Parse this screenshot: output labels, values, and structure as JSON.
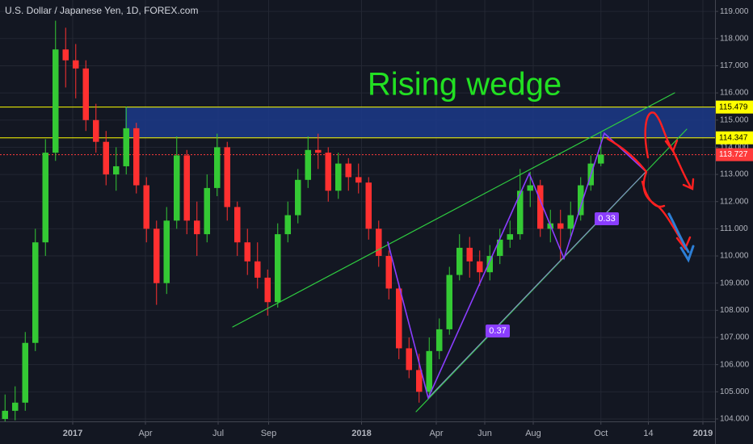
{
  "chart_data": {
    "type": "candlestick",
    "header": "U.S. Dollar / Japanese Yen, 1D, FOREX.com",
    "title": "Rising wedge",
    "annotations": [
      "0.37",
      "0.33"
    ],
    "up_color": "#34c934",
    "down_color": "#ff3030",
    "grid": true,
    "xlim": [
      -0.5,
      70.3
    ],
    "ylim": [
      103.91,
      119.42
    ],
    "xticks": [
      {
        "value": 6.7,
        "label": "2017"
      },
      {
        "value": 13.9,
        "label": "Apr"
      },
      {
        "value": 21.1,
        "label": "Jul"
      },
      {
        "value": 26.1,
        "label": "Sep"
      },
      {
        "value": 35.3,
        "label": "2018"
      },
      {
        "value": 42.7,
        "label": "Apr"
      },
      {
        "value": 47.5,
        "label": "Jun"
      },
      {
        "value": 52.3,
        "label": "Aug"
      },
      {
        "value": 59,
        "label": "Oct"
      },
      {
        "value": 63.7,
        "label": "14"
      },
      {
        "value": 69.1,
        "label": "2019"
      }
    ],
    "yticks": [
      {
        "value": 104,
        "label": "104.000"
      },
      {
        "value": 105,
        "label": "105.000"
      },
      {
        "value": 106,
        "label": "106.000"
      },
      {
        "value": 107,
        "label": "107.000"
      },
      {
        "value": 108,
        "label": "108.000"
      },
      {
        "value": 109,
        "label": "109.000"
      },
      {
        "value": 110,
        "label": "110.000"
      },
      {
        "value": 111,
        "label": "111.000"
      },
      {
        "value": 112,
        "label": "112.000"
      },
      {
        "value": 113,
        "label": "113.000"
      },
      {
        "value": 114,
        "label": "114.000"
      },
      {
        "value": 115,
        "label": "115.000"
      },
      {
        "value": 116,
        "label": "116.000"
      },
      {
        "value": 117,
        "label": "117.000"
      },
      {
        "value": 118,
        "label": "118.000"
      },
      {
        "value": 119,
        "label": "119.000"
      }
    ],
    "hlines": [
      {
        "value": 115.479,
        "color": "#ffff00"
      },
      {
        "value": 114.347,
        "color": "#ffff00"
      },
      {
        "value": 113.727,
        "color": "#ff3b3b"
      }
    ],
    "open": [
      104.0,
      104.3,
      104.6,
      106.8,
      110.5,
      113.8,
      117.6,
      117.2,
      116.9,
      115.0,
      114.2,
      113.0,
      113.3,
      114.7,
      112.6,
      111.0,
      109.0,
      111.3,
      113.7,
      111.3,
      110.8,
      112.5,
      114.0,
      111.8,
      110.5,
      109.8,
      109.2,
      108.3,
      110.8,
      111.5,
      112.8,
      113.9,
      113.8,
      112.4,
      113.4,
      112.9,
      112.7,
      111.0,
      110.0,
      108.8,
      106.6,
      105.8,
      105.0,
      106.5,
      107.3,
      109.3,
      110.3,
      109.8,
      109.4,
      110.0,
      110.6,
      110.8,
      112.4,
      112.6,
      111.0,
      111.2,
      111.0,
      111.5,
      112.6,
      113.4
    ],
    "high": [
      104.9,
      105.2,
      107.2,
      111.0,
      114.3,
      118.66,
      118.4,
      117.8,
      117.2,
      115.6,
      114.6,
      114.0,
      115.5,
      114.9,
      112.9,
      111.3,
      111.8,
      114.4,
      113.9,
      112.0,
      113.0,
      114.5,
      114.2,
      112.0,
      111.0,
      110.5,
      109.5,
      111.2,
      112.0,
      113.2,
      114.4,
      114.5,
      114.0,
      113.8,
      113.6,
      113.4,
      112.9,
      111.3,
      110.2,
      109.0,
      107.0,
      106.4,
      107.0,
      107.7,
      109.6,
      110.8,
      110.7,
      110.2,
      110.4,
      111.0,
      111.3,
      113.2,
      113.1,
      112.8,
      111.7,
      111.7,
      112.0,
      112.9,
      113.7,
      114.55
    ],
    "low": [
      103.9,
      103.95,
      104.3,
      106.5,
      110.0,
      113.5,
      116.2,
      115.8,
      114.6,
      113.8,
      112.6,
      112.4,
      113.0,
      112.3,
      110.5,
      108.2,
      108.6,
      111.0,
      110.8,
      110.0,
      110.5,
      112.2,
      111.3,
      110.0,
      109.3,
      108.8,
      107.8,
      108.1,
      110.5,
      111.2,
      112.5,
      113.2,
      112.0,
      112.1,
      112.4,
      112.3,
      110.6,
      109.6,
      108.4,
      106.2,
      105.5,
      104.6,
      104.9,
      106.2,
      107.1,
      109.1,
      109.2,
      108.9,
      109.1,
      109.7,
      110.3,
      110.6,
      111.8,
      110.7,
      110.5,
      109.8,
      110.7,
      111.3,
      112.4,
      113.3
    ],
    "close": [
      104.3,
      104.6,
      106.8,
      110.5,
      113.8,
      117.6,
      117.2,
      116.9,
      115.0,
      114.2,
      113.0,
      113.3,
      114.7,
      112.6,
      111.0,
      109.0,
      111.3,
      113.7,
      111.3,
      110.8,
      112.5,
      114.0,
      111.8,
      110.5,
      109.8,
      109.2,
      108.3,
      110.8,
      111.5,
      112.8,
      113.9,
      113.8,
      112.4,
      113.4,
      112.9,
      112.7,
      111.0,
      110.0,
      108.8,
      106.6,
      105.8,
      105.0,
      106.5,
      107.3,
      109.3,
      110.3,
      109.8,
      109.4,
      110.0,
      110.6,
      110.8,
      112.4,
      112.6,
      111.0,
      111.2,
      111.0,
      111.5,
      112.6,
      113.4,
      113.73
    ]
  }
}
